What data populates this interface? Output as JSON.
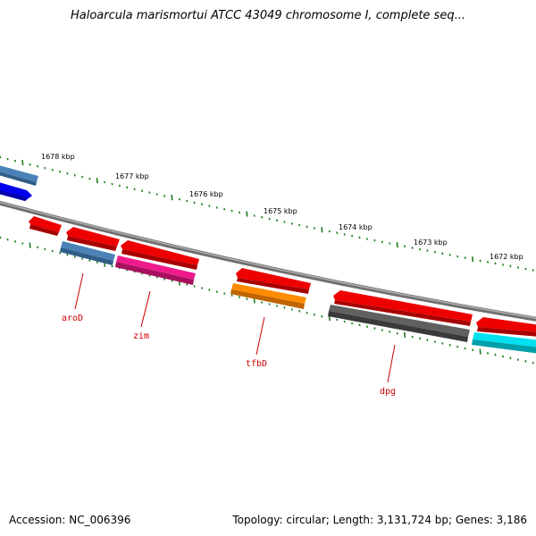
{
  "title": "Haloarcula marismortui ATCC 43049 chromosome I, complete seq...",
  "footer": {
    "accession": "Accession: NC_006396",
    "topology": "Topology: circular; Length: 3,131,724 bp; Genes: 3,186"
  },
  "scale_labels": [
    "1678 kbp",
    "1677 kbp",
    "1676 kbp",
    "1675 kbp",
    "1674 kbp",
    "1673 kbp",
    "1672 kbp"
  ],
  "gene_labels": [
    "aroD",
    "zim",
    "tfbD",
    "dpg"
  ],
  "colors": {
    "backbone": "#8c8c8c",
    "tick": "#1e7a1e",
    "label": "#cc0000",
    "red_gene": "#ee0000",
    "steelblue_gene": "#4a82b8",
    "blue_gene": "#0000ee",
    "magenta_gene": "#ee1a8c",
    "orange_gene": "#ff8c00",
    "gray_gene": "#555555",
    "cyan_gene": "#00e0ee"
  }
}
